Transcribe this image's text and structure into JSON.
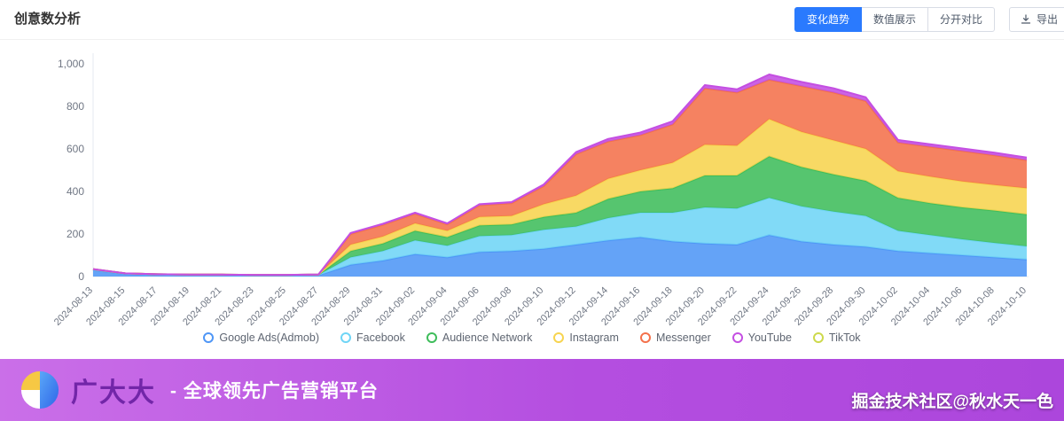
{
  "header": {
    "title": "创意数分析",
    "view_buttons": [
      {
        "label": "变化趋势",
        "active": true
      },
      {
        "label": "数值展示",
        "active": false
      },
      {
        "label": "分开对比",
        "active": false
      }
    ],
    "export_label": "导出"
  },
  "colors": {
    "accent": "#2A7AFE",
    "footer_gradient_start": "#CA6FE8",
    "footer_gradient_end": "#AC46DC",
    "brand_text": "#7226A8"
  },
  "chart_data": {
    "type": "area",
    "stacked": true,
    "title": "创意数分析",
    "xlabel": "",
    "ylabel": "",
    "ylim": [
      0,
      1000
    ],
    "yticks": [
      "0",
      "200",
      "400",
      "600",
      "800",
      "1,000"
    ],
    "grid": false,
    "legend_position": "bottom",
    "x": [
      "2024-08-13",
      "2024-08-15",
      "2024-08-17",
      "2024-08-19",
      "2024-08-21",
      "2024-08-23",
      "2024-08-25",
      "2024-08-27",
      "2024-08-29",
      "2024-08-31",
      "2024-09-02",
      "2024-09-04",
      "2024-09-06",
      "2024-09-08",
      "2024-09-10",
      "2024-09-12",
      "2024-09-14",
      "2024-09-16",
      "2024-09-18",
      "2024-09-20",
      "2024-09-22",
      "2024-09-24",
      "2024-09-26",
      "2024-09-28",
      "2024-09-30",
      "2024-10-02",
      "2024-10-04",
      "2024-10-06",
      "2024-10-08",
      "2024-10-10"
    ],
    "series": [
      {
        "name": "Google Ads(Admob)",
        "color": "#4F96F6",
        "values": [
          30,
          12,
          8,
          6,
          6,
          5,
          5,
          6,
          55,
          75,
          105,
          90,
          115,
          120,
          130,
          150,
          170,
          185,
          165,
          155,
          150,
          195,
          165,
          150,
          140,
          120,
          110,
          100,
          90,
          80
        ]
      },
      {
        "name": "Facebook",
        "color": "#6FD5F6",
        "values": [
          3,
          2,
          2,
          2,
          2,
          2,
          2,
          2,
          35,
          45,
          65,
          55,
          75,
          75,
          90,
          85,
          105,
          115,
          135,
          170,
          170,
          175,
          165,
          155,
          145,
          95,
          85,
          75,
          68,
          62
        ]
      },
      {
        "name": "Audience Network",
        "color": "#3FBD5B",
        "values": [
          1,
          1,
          1,
          1,
          1,
          1,
          1,
          1,
          30,
          35,
          45,
          40,
          50,
          50,
          60,
          65,
          90,
          100,
          115,
          150,
          155,
          195,
          185,
          175,
          165,
          155,
          150,
          150,
          152,
          150
        ]
      },
      {
        "name": "Instagram",
        "color": "#F7D44F",
        "values": [
          0,
          0,
          0,
          0,
          0,
          0,
          0,
          0,
          30,
          33,
          35,
          30,
          40,
          40,
          60,
          80,
          95,
          100,
          120,
          145,
          140,
          175,
          165,
          160,
          150,
          125,
          125,
          122,
          120,
          123
        ]
      },
      {
        "name": "Messenger",
        "color": "#F4714B",
        "values": [
          1,
          0,
          0,
          0,
          0,
          0,
          0,
          0,
          50,
          55,
          45,
          30,
          55,
          60,
          85,
          195,
          175,
          165,
          180,
          265,
          250,
          185,
          215,
          225,
          225,
          135,
          140,
          143,
          140,
          132
        ]
      },
      {
        "name": "YouTube",
        "color": "#C44FE2",
        "values": [
          0,
          0,
          0,
          0,
          0,
          0,
          0,
          1,
          5,
          5,
          5,
          5,
          5,
          5,
          8,
          10,
          12,
          12,
          15,
          15,
          15,
          25,
          20,
          20,
          18,
          12,
          12,
          12,
          12,
          12
        ]
      },
      {
        "name": "TikTok",
        "color": "#CDD94C",
        "values": [
          0,
          0,
          0,
          0,
          0,
          0,
          0,
          0,
          0,
          0,
          0,
          0,
          0,
          0,
          0,
          0,
          0,
          0,
          0,
          0,
          0,
          0,
          0,
          0,
          0,
          0,
          0,
          0,
          0,
          0
        ]
      }
    ]
  },
  "footer": {
    "brand": "广大大",
    "tagline": "- 全球领先广告营销平台",
    "watermark": "掘金技术社区@秋水天一色"
  }
}
